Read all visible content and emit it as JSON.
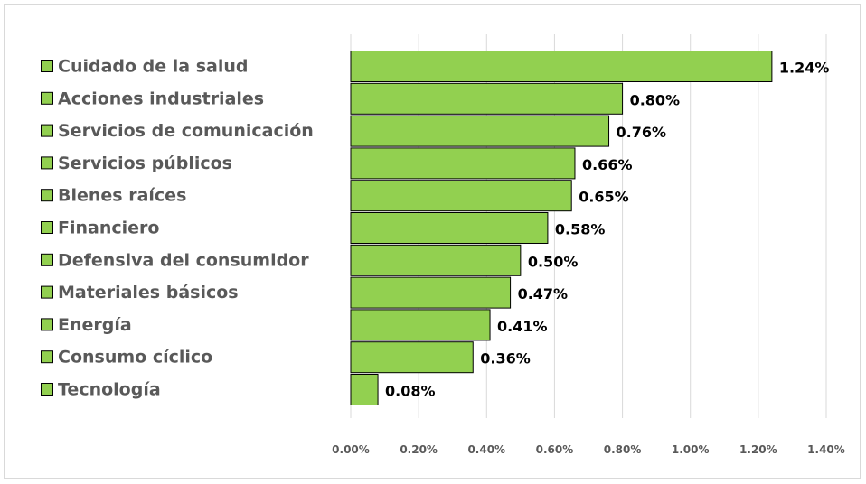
{
  "chart_data": {
    "type": "bar",
    "orientation": "horizontal",
    "categories": [
      "Cuidado de la salud",
      "Acciones industriales",
      "Servicios de comunicación",
      "Servicios públicos",
      "Bienes raíces",
      "Financiero",
      "Defensiva del consumidor",
      "Materiales básicos",
      "Energía",
      "Consumo cíclico",
      "Tecnología"
    ],
    "values": [
      1.24,
      0.8,
      0.76,
      0.66,
      0.65,
      0.58,
      0.5,
      0.47,
      0.41,
      0.36,
      0.08
    ],
    "value_labels": [
      "1.24%",
      "0.80%",
      "0.76%",
      "0.66%",
      "0.65%",
      "0.58%",
      "0.50%",
      "0.47%",
      "0.41%",
      "0.36%",
      "0.08%"
    ],
    "x_ticks": [
      "0.00%",
      "0.20%",
      "0.40%",
      "0.60%",
      "0.80%",
      "1.00%",
      "1.20%",
      "1.40%"
    ],
    "xlim": [
      0,
      1.4
    ],
    "title": "",
    "xlabel": "",
    "ylabel": "",
    "grid": "vertical",
    "legend": "left",
    "colors": {
      "bar_fill": "#92d050",
      "bar_stroke": "#000000",
      "grid": "#d9d9d9",
      "category_text": "#595959",
      "value_text": "#000000"
    }
  }
}
